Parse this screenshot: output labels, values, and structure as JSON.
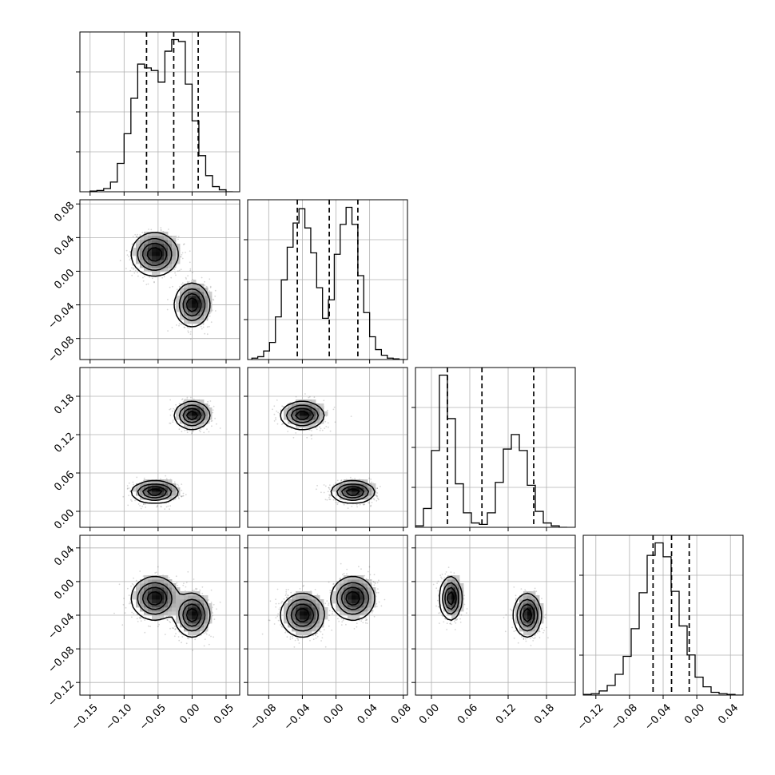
{
  "chart_data": {
    "type": "corner",
    "title": "",
    "parameters": 4,
    "grid": true,
    "styles": {
      "line": "#000000",
      "grid": "#b0b0b0",
      "scatter": "#000000",
      "quantile_line": "#000000"
    },
    "ranges": [
      [
        -0.165,
        0.07
      ],
      [
        -0.105,
        0.085
      ],
      [
        -0.025,
        0.225
      ],
      [
        -0.135,
        0.055
      ]
    ],
    "ticks": [
      {
        "values": [
          -0.15,
          -0.1,
          -0.05,
          0.0,
          0.05
        ],
        "labels": [
          "−0.15",
          "−0.10",
          "−0.05",
          "0.00",
          "0.05"
        ]
      },
      {
        "values": [
          -0.08,
          -0.04,
          0.0,
          0.04,
          0.08
        ],
        "labels": [
          "−0.08",
          "−0.04",
          "0.00",
          "0.04",
          "0.08"
        ]
      },
      {
        "values": [
          0.0,
          0.06,
          0.12,
          0.18
        ],
        "labels": [
          "0.00",
          "0.06",
          "0.12",
          "0.18"
        ]
      },
      {
        "values": [
          -0.12,
          -0.08,
          -0.04,
          0.0,
          0.04
        ],
        "labels": [
          "−0.12",
          "−0.08",
          "−0.04",
          "0.00",
          "0.04"
        ]
      }
    ],
    "quantiles": [
      [
        -0.067,
        -0.027,
        0.009
      ],
      [
        -0.046,
        -0.008,
        0.026
      ],
      [
        0.025,
        0.079,
        0.16
      ],
      [
        -0.052,
        -0.03,
        -0.009
      ]
    ],
    "histograms": [
      {
        "bins": [
          -0.15,
          -0.14,
          -0.13,
          -0.12,
          -0.11,
          -0.1,
          -0.09,
          -0.08,
          -0.07,
          -0.06,
          -0.05,
          -0.04,
          -0.03,
          -0.02,
          -0.01,
          0.0,
          0.01,
          0.02,
          0.03,
          0.04,
          0.05,
          0.06
        ],
        "counts": [
          1,
          2,
          5,
          15,
          44,
          90,
          145,
          198,
          192,
          188,
          170,
          218,
          236,
          233,
          167,
          110,
          56,
          25,
          8,
          3,
          0
        ]
      },
      {
        "bins": [
          -0.1,
          -0.093,
          -0.086,
          -0.079,
          -0.072,
          -0.065,
          -0.058,
          -0.051,
          -0.044,
          -0.037,
          -0.03,
          -0.023,
          -0.016,
          -0.009,
          -0.002,
          0.005,
          0.012,
          0.019,
          0.026,
          0.033,
          0.04,
          0.047,
          0.054,
          0.061,
          0.068,
          0.075,
          0.082
        ],
        "counts": [
          2,
          4,
          12,
          24,
          60,
          112,
          158,
          192,
          212,
          185,
          150,
          101,
          58,
          84,
          148,
          190,
          214,
          190,
          118,
          66,
          32,
          14,
          6,
          2,
          1,
          0
        ]
      },
      {
        "bins": [
          -0.025,
          -0.0125,
          0.0,
          0.0125,
          0.025,
          0.0375,
          0.05,
          0.0625,
          0.075,
          0.0875,
          0.1,
          0.1125,
          0.125,
          0.1375,
          0.15,
          0.1625,
          0.175,
          0.1875,
          0.2,
          0.2125
        ],
        "counts": [
          2,
          26,
          106,
          210,
          150,
          60,
          20,
          6,
          4,
          20,
          62,
          108,
          128,
          106,
          58,
          22,
          6,
          2,
          0
        ]
      },
      {
        "bins": [
          -0.135,
          -0.1255,
          -0.116,
          -0.1065,
          -0.097,
          -0.0875,
          -0.078,
          -0.0685,
          -0.059,
          -0.0495,
          -0.04,
          -0.0305,
          -0.021,
          -0.0115,
          -0.002,
          0.0075,
          0.017,
          0.0265,
          0.036,
          0.0455,
          0.055
        ],
        "counts": [
          1,
          2,
          6,
          14,
          30,
          56,
          96,
          148,
          202,
          220,
          200,
          150,
          100,
          58,
          26,
          12,
          4,
          2,
          1,
          0
        ]
      }
    ],
    "modes": [
      {
        "w": 0.5,
        "mu": [
          -0.055,
          0.02,
          0.03,
          -0.02
        ],
        "sd": [
          0.016,
          0.012,
          0.008,
          0.012
        ]
      },
      {
        "w": 0.5,
        "mu": [
          0.0,
          -0.04,
          0.15,
          -0.04
        ],
        "sd": [
          0.012,
          0.012,
          0.01,
          0.012
        ]
      }
    ]
  }
}
